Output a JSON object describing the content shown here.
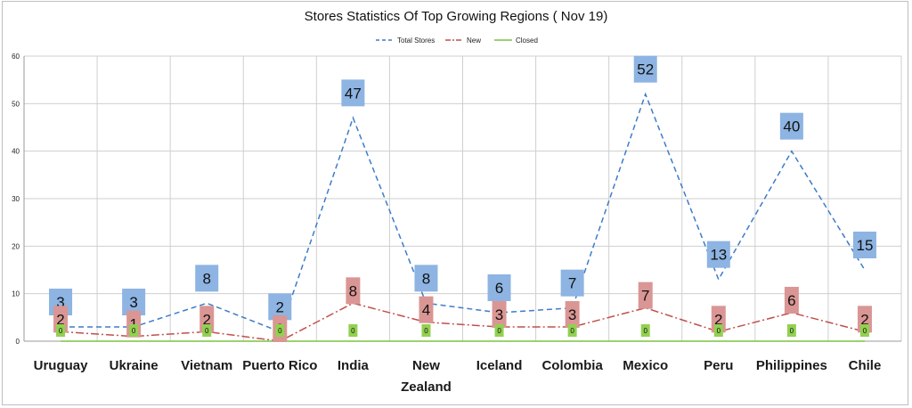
{
  "chart_data": {
    "type": "line",
    "title": "Stores Statistics Of Top Growing Regions ( Nov 19)",
    "categories": [
      "Uruguay",
      "Ukraine",
      "Vietnam",
      "Puerto Rico",
      "India",
      [
        "New",
        "Zealand"
      ],
      "Iceland",
      "Colombia",
      "Mexico",
      "Peru",
      "Philippines",
      "Chile"
    ],
    "ylim": [
      0,
      60
    ],
    "yticks": [
      0,
      10,
      20,
      30,
      40,
      50,
      60
    ],
    "grid": true,
    "legend_position": "top-center",
    "series": [
      {
        "name": "Total Stores",
        "values": [
          3,
          3,
          8,
          2,
          47,
          8,
          6,
          7,
          52,
          13,
          40,
          15
        ],
        "data_labels": [
          "3",
          "3",
          "8",
          "2",
          "47",
          "8",
          "6",
          "7",
          "52",
          "13",
          "40",
          "15"
        ],
        "color": "#3d7cc9",
        "label_bg": "#8db4e2",
        "dash": "6,4"
      },
      {
        "name": "New",
        "values": [
          2,
          1,
          2,
          0,
          8,
          4,
          3,
          3,
          7,
          2,
          6,
          2
        ],
        "data_labels": [
          "2",
          "1",
          "2",
          "0",
          "8",
          "4",
          "3",
          "3",
          "7",
          "2",
          "6",
          "2"
        ],
        "color": "#c0504d",
        "label_bg": "#da9694",
        "dash": "9,3,2,3"
      },
      {
        "name": "Closed",
        "values": [
          0,
          0,
          0,
          0,
          0,
          0,
          0,
          0,
          0,
          0,
          0,
          0
        ],
        "data_labels": [
          "0",
          "0",
          "0",
          "0",
          "0",
          "0",
          "0",
          "0",
          "0",
          "0",
          "0",
          "0"
        ],
        "color": "#7dc242",
        "label_bg": "#92d050",
        "dash": ""
      }
    ]
  }
}
